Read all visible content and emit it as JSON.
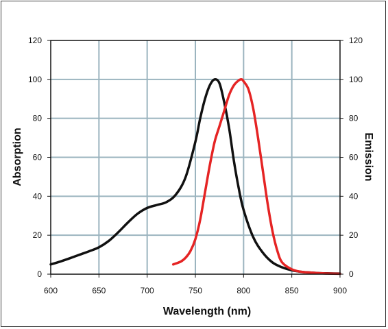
{
  "chart_data": {
    "type": "line",
    "xlabel": "Wavelength (nm)",
    "ylabel_left": "Absorption",
    "ylabel_right": "Emission",
    "xlim": [
      600,
      900
    ],
    "ylim_left": [
      0,
      120
    ],
    "ylim_right": [
      0,
      120
    ],
    "x_ticks": [
      "600",
      "650",
      "700",
      "750",
      "800",
      "850",
      "900"
    ],
    "y_ticks_left": [
      "0",
      "20",
      "40",
      "60",
      "80",
      "100",
      "120"
    ],
    "y_ticks_right": [
      "0",
      "20",
      "40",
      "60",
      "80",
      "100",
      "120"
    ],
    "grid": true,
    "series": [
      {
        "axis": "left",
        "color": "#111111",
        "x": [
          600,
          610,
          620,
          630,
          640,
          650,
          660,
          670,
          680,
          690,
          700,
          710,
          720,
          730,
          740,
          750,
          755,
          760,
          765,
          770,
          775,
          780,
          785,
          790,
          795,
          800,
          810,
          820,
          830,
          840,
          850,
          860,
          870,
          880,
          890,
          900
        ],
        "y": [
          5,
          6.5,
          8.2,
          10,
          11.8,
          13.8,
          17,
          21.5,
          26.5,
          31,
          34,
          35.5,
          37,
          41,
          50,
          68,
          80,
          90,
          97,
          100,
          98,
          88,
          75,
          58,
          44,
          33,
          19,
          11,
          6,
          3.5,
          2,
          1.2,
          0.8,
          0.5,
          0.4,
          0.3
        ]
      },
      {
        "axis": "right",
        "color": "#e52424",
        "x": [
          727,
          735,
          740,
          745,
          750,
          755,
          760,
          765,
          770,
          775,
          780,
          785,
          790,
          795,
          798,
          800,
          805,
          810,
          815,
          820,
          825,
          830,
          835,
          840,
          850,
          860,
          870,
          880,
          890,
          900
        ],
        "y": [
          5,
          6.5,
          8.5,
          12,
          18,
          28,
          42,
          56,
          68,
          76,
          84,
          92,
          97,
          99.5,
          100,
          99,
          95,
          85,
          70,
          53,
          36,
          22,
          12,
          6,
          2.5,
          1.2,
          0.8,
          0.5,
          0.3,
          0.2
        ]
      }
    ]
  }
}
